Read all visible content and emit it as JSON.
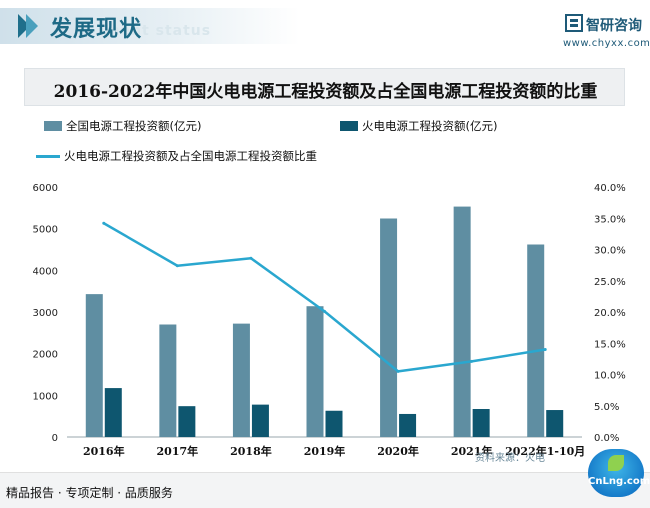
{
  "header": {
    "section_title": "发展现状",
    "section_subtitle": "ment status",
    "brand": "智研咨询",
    "url": "www.chyxx.com",
    "accent_color": "#1e6a86"
  },
  "chart_data": {
    "type": "bar",
    "title": "2016-2022年中国火电电源工程投资额及占全国电源工程投资额的比重",
    "categories": [
      "2016年",
      "2017年",
      "2018年",
      "2019年",
      "2020年",
      "2021年",
      "2022年1-10月"
    ],
    "series": [
      {
        "name": "全国电源工程投资额(亿元)",
        "type": "bar",
        "color": "#5f8ea2",
        "values": [
          3429,
          2700,
          2721,
          3139,
          5244,
          5530,
          4620
        ]
      },
      {
        "name": "火电电源工程投资额(亿元)",
        "type": "bar",
        "color": "#0e566f",
        "values": [
          1174,
          740,
          777,
          630,
          553,
          672,
          647
        ]
      },
      {
        "name": "火电电源工程投资额及占全国电源工程投资额比重",
        "type": "line",
        "color": "#2aa7cf",
        "axis": "right",
        "values": [
          34.2,
          27.4,
          28.6,
          20.1,
          10.5,
          12.1,
          14.0
        ]
      }
    ],
    "y_left": {
      "min": 0,
      "max": 6000,
      "ticks": [
        "0",
        "1000",
        "2000",
        "3000",
        "4000",
        "5000",
        "6000"
      ]
    },
    "y_right": {
      "min": 0,
      "max": 40,
      "ticks": [
        "0.0%",
        "5.0%",
        "10.0%",
        "15.0%",
        "20.0%",
        "25.0%",
        "30.0%",
        "35.0%",
        "40.0%"
      ]
    },
    "grid": false,
    "legend_placement": "top"
  },
  "footer": {
    "tagline": "精品报告 · 专项定制 · 品质服务",
    "watermark_text": "资料来源：火电",
    "badge_text": "CnLng.com"
  }
}
